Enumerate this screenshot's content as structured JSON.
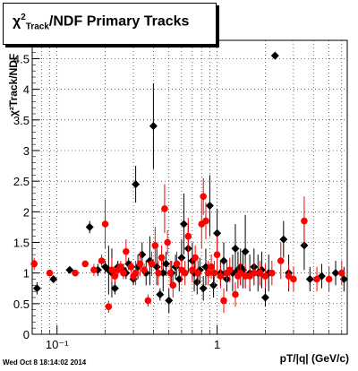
{
  "title": {
    "chi": "χ",
    "sup": "2",
    "sub": "Track",
    "rest": "/NDF  Primary Tracks"
  },
  "xlabel": "pT/|q| (GeV/c)",
  "ylabel": "χ²Track/NDF",
  "timestamp": "Wed Oct  8 18:14:02 2014",
  "chart_data": {
    "type": "scatter",
    "xscale": "log",
    "xlim": [
      0.07,
      6.5
    ],
    "ylim": [
      0,
      4.8
    ],
    "grid": true,
    "yticks": [
      0,
      0.5,
      1,
      1.5,
      2,
      2.5,
      3,
      3.5,
      4,
      4.5
    ],
    "xticks": [
      {
        "value": 0.1,
        "label": "10⁻¹"
      },
      {
        "value": 1,
        "label": "1"
      }
    ],
    "series": [
      {
        "color": "#000000",
        "marker": "diamond",
        "points": [
          [
            0.075,
            0.75,
            0.1
          ],
          [
            0.095,
            0.9,
            0.05
          ],
          [
            0.12,
            1.05,
            0.05
          ],
          [
            0.16,
            1.75,
            0.1
          ],
          [
            0.18,
            1.05,
            0.1
          ],
          [
            0.2,
            1.1,
            0.1
          ],
          [
            0.21,
            1.05,
            0.4
          ],
          [
            0.22,
            1.0,
            0.4
          ],
          [
            0.23,
            0.75,
            0.1
          ],
          [
            0.24,
            1.1,
            0.1
          ],
          [
            0.26,
            1.05,
            0.1
          ],
          [
            0.27,
            1.0,
            0.1
          ],
          [
            0.28,
            1.15,
            0.1
          ],
          [
            0.3,
            0.9,
            0.1
          ],
          [
            0.31,
            2.45,
            0.3
          ],
          [
            0.32,
            1.1,
            0.2
          ],
          [
            0.34,
            1.3,
            0.2
          ],
          [
            0.36,
            1.0,
            0.2
          ],
          [
            0.38,
            1.2,
            0.4
          ],
          [
            0.4,
            3.4,
            0.7
          ],
          [
            0.42,
            1.1,
            0.3
          ],
          [
            0.44,
            0.65,
            0.1
          ],
          [
            0.46,
            1.0,
            0.3
          ],
          [
            0.48,
            1.15,
            0.2
          ],
          [
            0.5,
            0.55,
            0.2
          ],
          [
            0.52,
            1.0,
            0.2
          ],
          [
            0.55,
            1.1,
            0.2
          ],
          [
            0.58,
            0.9,
            0.2
          ],
          [
            0.6,
            1.25,
            0.3
          ],
          [
            0.62,
            1.8,
            0.5
          ],
          [
            0.66,
            1.4,
            0.4
          ],
          [
            0.7,
            1.2,
            0.3
          ],
          [
            0.72,
            1.0,
            0.3
          ],
          [
            0.75,
            0.85,
            0.2
          ],
          [
            0.78,
            1.05,
            0.2
          ],
          [
            0.82,
            0.75,
            0.2
          ],
          [
            0.85,
            1.1,
            0.3
          ],
          [
            0.9,
            2.1,
            0.5
          ],
          [
            0.95,
            0.8,
            0.2
          ],
          [
            1.0,
            1.65,
            0.4
          ],
          [
            1.05,
            1.0,
            0.2
          ],
          [
            1.1,
            1.2,
            0.3
          ],
          [
            1.15,
            0.9,
            0.2
          ],
          [
            1.25,
            1.0,
            0.3
          ],
          [
            1.3,
            1.4,
            0.4
          ],
          [
            1.35,
            1.05,
            0.3
          ],
          [
            1.4,
            1.1,
            0.3
          ],
          [
            1.45,
            1.05,
            0.3
          ],
          [
            1.5,
            1.35,
            0.6
          ],
          [
            1.6,
            1.0,
            0.3
          ],
          [
            1.7,
            1.1,
            0.3
          ],
          [
            1.8,
            1.0,
            0.3
          ],
          [
            1.9,
            1.05,
            0.3
          ],
          [
            2.0,
            0.6,
            0.15
          ],
          [
            2.1,
            1.0,
            0.3
          ],
          [
            2.3,
            4.55,
            0.05
          ],
          [
            2.6,
            1.55,
            0.3
          ],
          [
            2.8,
            1.0,
            0.3
          ],
          [
            3.5,
            1.45,
            0.4
          ],
          [
            3.8,
            0.9,
            0.2
          ],
          [
            4.5,
            0.95,
            0.2
          ],
          [
            5.5,
            1.0,
            0.2
          ],
          [
            6.2,
            0.9,
            0.2
          ]
        ]
      },
      {
        "color": "#ff0000",
        "marker": "circle",
        "points": [
          [
            0.072,
            1.15,
            0.1
          ],
          [
            0.09,
            1.0,
            0.05
          ],
          [
            0.13,
            1.0,
            0.05
          ],
          [
            0.15,
            1.15,
            0.05
          ],
          [
            0.17,
            1.05,
            0.1
          ],
          [
            0.19,
            1.2,
            0.1
          ],
          [
            0.2,
            1.8,
            0.4
          ],
          [
            0.21,
            0.45,
            0.1
          ],
          [
            0.22,
            1.05,
            0.2
          ],
          [
            0.23,
            0.95,
            0.1
          ],
          [
            0.24,
            1.05,
            0.1
          ],
          [
            0.25,
            1.1,
            0.1
          ],
          [
            0.26,
            1.0,
            0.1
          ],
          [
            0.27,
            1.35,
            0.2
          ],
          [
            0.29,
            1.1,
            0.1
          ],
          [
            0.3,
            0.95,
            0.1
          ],
          [
            0.31,
            1.0,
            0.2
          ],
          [
            0.33,
            1.15,
            0.2
          ],
          [
            0.35,
            1.05,
            0.1
          ],
          [
            0.37,
            0.55,
            0.1
          ],
          [
            0.39,
            1.15,
            0.2
          ],
          [
            0.41,
            1.45,
            0.3
          ],
          [
            0.43,
            1.0,
            0.2
          ],
          [
            0.45,
            1.25,
            0.2
          ],
          [
            0.47,
            2.05,
            0.4
          ],
          [
            0.49,
            1.5,
            0.2
          ],
          [
            0.51,
            1.0,
            0.2
          ],
          [
            0.53,
            0.8,
            0.2
          ],
          [
            0.56,
            1.15,
            0.2
          ],
          [
            0.6,
            1.05,
            0.2
          ],
          [
            0.63,
            1.0,
            0.2
          ],
          [
            0.66,
            1.6,
            0.3
          ],
          [
            0.7,
            1.05,
            0.2
          ],
          [
            0.73,
            1.25,
            0.2
          ],
          [
            0.76,
            1.0,
            0.2
          ],
          [
            0.8,
            1.8,
            0.4
          ],
          [
            0.82,
            2.25,
            0.3
          ],
          [
            0.85,
            1.85,
            0.3
          ],
          [
            0.88,
            1.0,
            0.2
          ],
          [
            0.92,
            1.1,
            0.2
          ],
          [
            0.96,
            1.0,
            0.2
          ],
          [
            1.0,
            1.3,
            0.3
          ],
          [
            1.05,
            0.95,
            0.2
          ],
          [
            1.1,
            0.55,
            0.2
          ],
          [
            1.15,
            1.0,
            0.2
          ],
          [
            1.2,
            1.05,
            0.2
          ],
          [
            1.3,
            0.65,
            0.2
          ],
          [
            1.35,
            0.95,
            0.2
          ],
          [
            1.4,
            1.0,
            0.2
          ],
          [
            1.5,
            0.95,
            0.2
          ],
          [
            1.6,
            0.95,
            0.2
          ],
          [
            1.7,
            1.0,
            0.2
          ],
          [
            1.85,
            1.0,
            0.2
          ],
          [
            2.0,
            0.95,
            0.2
          ],
          [
            2.2,
            1.0,
            0.2
          ],
          [
            2.5,
            1.2,
            0.3
          ],
          [
            2.8,
            0.95,
            0.2
          ],
          [
            3.0,
            0.9,
            0.2
          ],
          [
            3.5,
            1.85,
            0.4
          ],
          [
            4.2,
            0.9,
            0.2
          ],
          [
            5.0,
            0.9,
            0.2
          ],
          [
            6.0,
            1.0,
            0.2
          ]
        ]
      }
    ]
  }
}
